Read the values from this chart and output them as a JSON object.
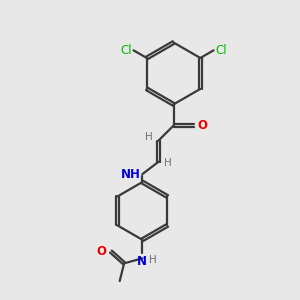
{
  "background_color": "#e8e8e8",
  "bond_color": "#3a3a3a",
  "cl_color": "#00bb00",
  "o_color": "#ee0000",
  "n_color": "#0000dd",
  "h_color": "#707070",
  "figsize": [
    3.0,
    3.0
  ],
  "dpi": 100,
  "xlim": [
    0,
    10
  ],
  "ylim": [
    0,
    10
  ]
}
